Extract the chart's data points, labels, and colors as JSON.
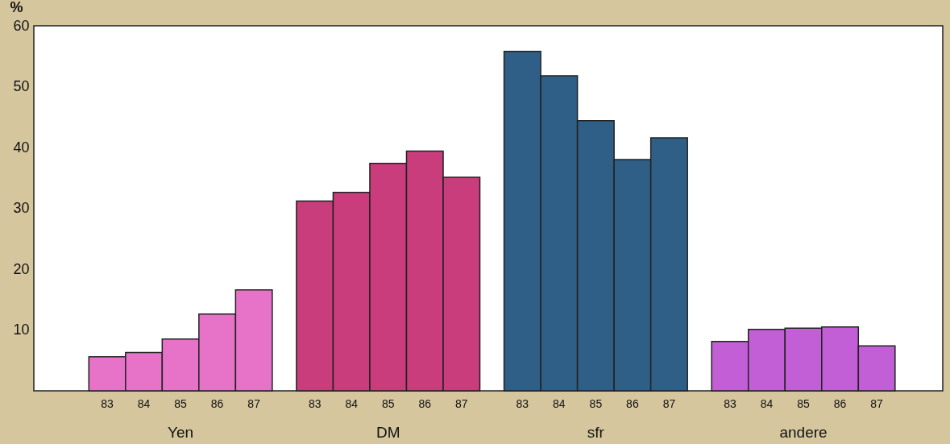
{
  "chart_data": {
    "type": "bar",
    "stacked": true,
    "ylabel": "%",
    "categories": [
      "83",
      "84",
      "85",
      "86",
      "87",
      "83",
      "84",
      "85",
      "86",
      "87",
      "83",
      "84",
      "85",
      "86",
      "87",
      "83",
      "84",
      "85",
      "86",
      "87"
    ],
    "series": [
      {
        "name": "Yen",
        "color": "#e673c8",
        "values": [
          5.6,
          6.3,
          8.5,
          12.6,
          16.6,
          null,
          null,
          null,
          null,
          null,
          null,
          null,
          null,
          null,
          null,
          null,
          null,
          null,
          null,
          null
        ]
      },
      {
        "name": "DM",
        "color": "#c93d7d",
        "values": [
          null,
          null,
          null,
          null,
          null,
          31.2,
          32.6,
          37.4,
          39.4,
          35.1,
          null,
          null,
          null,
          null,
          null,
          null,
          null,
          null,
          null,
          null
        ]
      },
      {
        "name": "sfr",
        "color": "#2f5f86",
        "values": [
          null,
          null,
          null,
          null,
          null,
          null,
          null,
          null,
          null,
          null,
          55.8,
          51.8,
          44.4,
          38.0,
          41.6,
          null,
          null,
          null,
          null,
          null
        ]
      },
      {
        "name": "andere",
        "color": "#c25ed6",
        "values": [
          null,
          null,
          null,
          null,
          null,
          null,
          null,
          null,
          null,
          null,
          null,
          null,
          null,
          null,
          null,
          8.1,
          10.1,
          10.3,
          10.5,
          7.4
        ]
      }
    ],
    "ylim": [
      0,
      60
    ],
    "yticks": [
      10,
      20,
      30,
      40,
      50,
      60
    ],
    "grid": false
  }
}
